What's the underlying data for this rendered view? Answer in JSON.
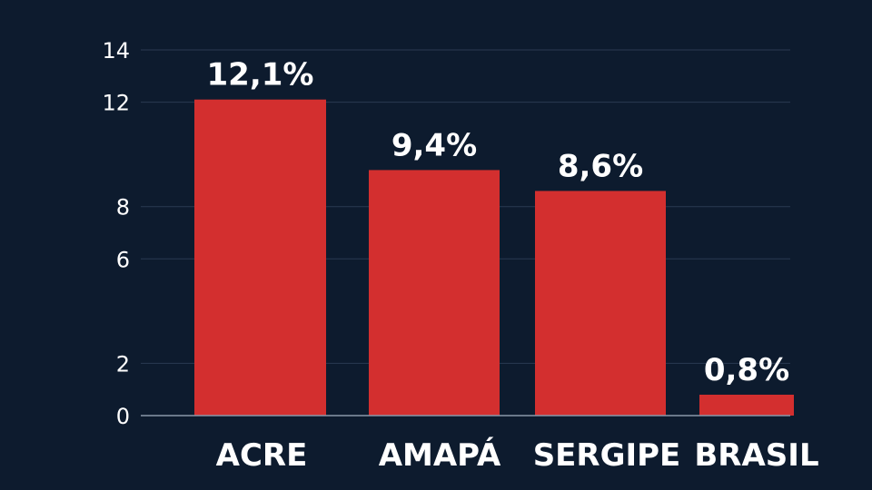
{
  "colors": {
    "background": "#0d1b2e",
    "bar": "#d32f2f",
    "text": "#ffffff",
    "grid": "#2a3a52"
  },
  "chart_data": {
    "type": "bar",
    "categories": [
      "ACRE",
      "AMAPÁ",
      "SERGIPE",
      "BRASIL"
    ],
    "values": [
      12.1,
      9.4,
      8.6,
      0.8
    ],
    "value_labels": [
      "12,1%",
      "9,4%",
      "8,6%",
      "0,8%"
    ],
    "yticks": [
      0,
      2,
      6,
      8,
      12,
      14
    ],
    "ylim": [
      0,
      14
    ],
    "grid": true,
    "legend": "none",
    "title": "",
    "xlabel": "",
    "ylabel": ""
  }
}
